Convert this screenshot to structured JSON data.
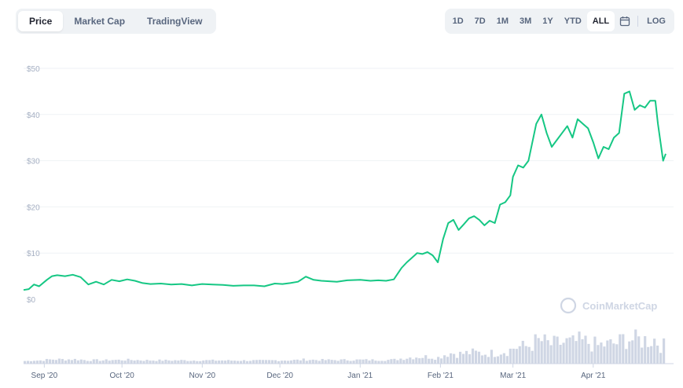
{
  "tabs": [
    {
      "label": "Price",
      "active": true
    },
    {
      "label": "Market Cap",
      "active": false
    },
    {
      "label": "TradingView",
      "active": false
    }
  ],
  "ranges": [
    {
      "label": "1D",
      "active": false
    },
    {
      "label": "7D",
      "active": false
    },
    {
      "label": "1M",
      "active": false
    },
    {
      "label": "3M",
      "active": false
    },
    {
      "label": "1Y",
      "active": false
    },
    {
      "label": "YTD",
      "active": false
    },
    {
      "label": "ALL",
      "active": true
    }
  ],
  "log_label": "LOG",
  "calendar_icon": "calendar-icon",
  "watermark": "CoinMarketCap",
  "chart_data": {
    "type": "line",
    "title": "",
    "xlabel": "",
    "ylabel": "",
    "ylim": [
      0,
      50
    ],
    "yticks": [
      0,
      10,
      20,
      30,
      40,
      50
    ],
    "ytick_labels": [
      "$0",
      "$10",
      "$20",
      "$30",
      "$40",
      "$50"
    ],
    "x_range": [
      "2020-08-24",
      "2021-04-29"
    ],
    "xtick_labels": [
      {
        "date": "2020-09-01",
        "label": "Sep '20"
      },
      {
        "date": "2020-10-01",
        "label": "Oct '20"
      },
      {
        "date": "2020-11-01",
        "label": "Nov '20"
      },
      {
        "date": "2020-12-01",
        "label": "Dec '20"
      },
      {
        "date": "2021-01-01",
        "label": "Jan '21"
      },
      {
        "date": "2021-02-01",
        "label": "Feb '21"
      },
      {
        "date": "2021-03-01",
        "label": "Mar '21"
      },
      {
        "date": "2021-04-01",
        "label": "Apr '21"
      }
    ],
    "grid": true,
    "line_color": "#16c784",
    "volume_color": "#cfd6e4",
    "series": [
      {
        "values": [
          [
            "2020-08-24",
            2.0
          ],
          [
            "2020-08-26",
            2.2
          ],
          [
            "2020-08-28",
            3.2
          ],
          [
            "2020-08-30",
            2.8
          ],
          [
            "2020-09-02",
            4.2
          ],
          [
            "2020-09-04",
            5.0
          ],
          [
            "2020-09-06",
            5.2
          ],
          [
            "2020-09-09",
            5.0
          ],
          [
            "2020-09-12",
            5.3
          ],
          [
            "2020-09-15",
            4.8
          ],
          [
            "2020-09-18",
            3.2
          ],
          [
            "2020-09-21",
            3.8
          ],
          [
            "2020-09-24",
            3.2
          ],
          [
            "2020-09-27",
            4.2
          ],
          [
            "2020-09-30",
            3.9
          ],
          [
            "2020-10-03",
            4.3
          ],
          [
            "2020-10-06",
            4.0
          ],
          [
            "2020-10-09",
            3.5
          ],
          [
            "2020-10-12",
            3.3
          ],
          [
            "2020-10-16",
            3.4
          ],
          [
            "2020-10-20",
            3.2
          ],
          [
            "2020-10-24",
            3.3
          ],
          [
            "2020-10-28",
            3.0
          ],
          [
            "2020-11-01",
            3.3
          ],
          [
            "2020-11-05",
            3.2
          ],
          [
            "2020-11-09",
            3.1
          ],
          [
            "2020-11-13",
            2.9
          ],
          [
            "2020-11-17",
            3.0
          ],
          [
            "2020-11-21",
            3.0
          ],
          [
            "2020-11-25",
            2.8
          ],
          [
            "2020-11-29",
            3.4
          ],
          [
            "2020-12-02",
            3.3
          ],
          [
            "2020-12-05",
            3.5
          ],
          [
            "2020-12-08",
            3.8
          ],
          [
            "2020-12-11",
            4.9
          ],
          [
            "2020-12-14",
            4.2
          ],
          [
            "2020-12-17",
            4.0
          ],
          [
            "2020-12-20",
            3.9
          ],
          [
            "2020-12-23",
            3.8
          ],
          [
            "2020-12-27",
            4.1
          ],
          [
            "2021-01-01",
            4.2
          ],
          [
            "2021-01-05",
            4.0
          ],
          [
            "2021-01-08",
            4.1
          ],
          [
            "2021-01-11",
            4.0
          ],
          [
            "2021-01-14",
            4.3
          ],
          [
            "2021-01-17",
            6.8
          ],
          [
            "2021-01-19",
            8.0
          ],
          [
            "2021-01-21",
            9.0
          ],
          [
            "2021-01-23",
            10.0
          ],
          [
            "2021-01-25",
            9.8
          ],
          [
            "2021-01-27",
            10.2
          ],
          [
            "2021-01-29",
            9.5
          ],
          [
            "2021-01-31",
            8.0
          ],
          [
            "2021-02-02",
            13.0
          ],
          [
            "2021-02-04",
            16.5
          ],
          [
            "2021-02-06",
            17.2
          ],
          [
            "2021-02-08",
            15.0
          ],
          [
            "2021-02-10",
            16.2
          ],
          [
            "2021-02-12",
            17.5
          ],
          [
            "2021-02-14",
            18.0
          ],
          [
            "2021-02-16",
            17.2
          ],
          [
            "2021-02-18",
            16.0
          ],
          [
            "2021-02-20",
            17.0
          ],
          [
            "2021-02-22",
            16.5
          ],
          [
            "2021-02-24",
            20.5
          ],
          [
            "2021-02-26",
            21.0
          ],
          [
            "2021-02-28",
            22.5
          ],
          [
            "2021-03-01",
            26.5
          ],
          [
            "2021-03-03",
            29.0
          ],
          [
            "2021-03-05",
            28.5
          ],
          [
            "2021-03-07",
            30.0
          ],
          [
            "2021-03-10",
            38.0
          ],
          [
            "2021-03-12",
            40.0
          ],
          [
            "2021-03-14",
            36.0
          ],
          [
            "2021-03-16",
            33.0
          ],
          [
            "2021-03-18",
            34.5
          ],
          [
            "2021-03-20",
            36.0
          ],
          [
            "2021-03-22",
            37.5
          ],
          [
            "2021-03-24",
            35.0
          ],
          [
            "2021-03-26",
            39.0
          ],
          [
            "2021-03-28",
            38.0
          ],
          [
            "2021-03-30",
            37.0
          ],
          [
            "2021-04-01",
            34.0
          ],
          [
            "2021-04-03",
            30.5
          ],
          [
            "2021-04-05",
            33.0
          ],
          [
            "2021-04-07",
            32.5
          ],
          [
            "2021-04-09",
            35.0
          ],
          [
            "2021-04-11",
            36.0
          ],
          [
            "2021-04-13",
            44.5
          ],
          [
            "2021-04-15",
            45.0
          ],
          [
            "2021-04-17",
            41.0
          ],
          [
            "2021-04-19",
            42.0
          ],
          [
            "2021-04-21",
            41.5
          ],
          [
            "2021-04-23",
            43.0
          ],
          [
            "2021-04-25",
            43.0
          ],
          [
            "2021-04-26",
            38.0
          ],
          [
            "2021-04-27",
            34.0
          ],
          [
            "2021-04-28",
            30.0
          ],
          [
            "2021-04-29",
            31.5
          ]
        ]
      }
    ]
  }
}
